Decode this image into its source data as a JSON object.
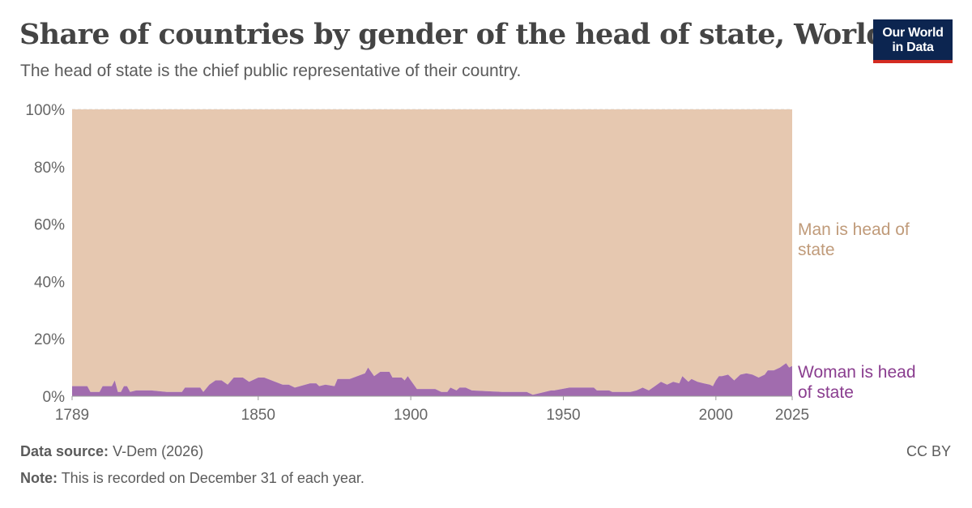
{
  "header": {
    "title": "Share of countries by gender of the head of state, World",
    "subtitle": "The head of state is the chief public representative of their country."
  },
  "logo": {
    "line1": "Our World",
    "line2": "in Data"
  },
  "footer": {
    "source_label": "Data source:",
    "source_value": "V-Dem (2026)",
    "note_label": "Note:",
    "note_value": "This is recorded on December 31 of each year.",
    "license": "CC BY"
  },
  "colors": {
    "man": "#e6c8b0",
    "man_label": "#c09b7a",
    "woman": "#a16cae",
    "woman_label": "#8a3d8f"
  },
  "chart_data": {
    "type": "area",
    "stacked": true,
    "x_ticks": [
      1789,
      1850,
      1900,
      1950,
      2000,
      2025
    ],
    "y_ticks": [
      "0%",
      "20%",
      "40%",
      "60%",
      "80%",
      "100%"
    ],
    "ylim": [
      0,
      100
    ],
    "xlim": [
      1789,
      2025
    ],
    "grid": "horizontal dashed",
    "series": [
      {
        "name": "Woman is head of state",
        "x": [
          1789,
          1794,
          1795,
          1798,
          1799,
          1802,
          1803,
          1804,
          1805,
          1806,
          1807,
          1808,
          1810,
          1815,
          1820,
          1825,
          1826,
          1831,
          1832,
          1834,
          1836,
          1838,
          1840,
          1842,
          1845,
          1847,
          1850,
          1852,
          1858,
          1860,
          1862,
          1867,
          1869,
          1870,
          1872,
          1875,
          1876,
          1880,
          1885,
          1886,
          1888,
          1890,
          1893,
          1894,
          1897,
          1898,
          1899,
          1900,
          1902,
          1908,
          1910,
          1912,
          1913,
          1915,
          1916,
          1918,
          1920,
          1930,
          1938,
          1940,
          1942,
          1946,
          1947,
          1952,
          1960,
          1961,
          1965,
          1966,
          1972,
          1974,
          1976,
          1978,
          1980,
          1982,
          1984,
          1986,
          1988,
          1989,
          1991,
          1992,
          1994,
          1996,
          1998,
          1999,
          2000,
          2001,
          2002,
          2004,
          2006,
          2008,
          2010,
          2012,
          2014,
          2016,
          2017,
          2019,
          2021,
          2023,
          2024,
          2025
        ],
        "values": [
          3.5,
          3.5,
          1.5,
          1.5,
          3.5,
          3.5,
          5.5,
          1.5,
          1.5,
          3.5,
          3.5,
          1.5,
          2,
          2,
          1.5,
          1.5,
          3,
          3,
          1.5,
          4,
          5.5,
          5.5,
          4,
          6.5,
          6.5,
          5,
          6.5,
          6.5,
          4,
          4,
          3,
          4.5,
          4.5,
          3.5,
          4,
          3.5,
          6,
          6,
          8,
          10,
          7,
          8.5,
          8.5,
          6.5,
          6.5,
          5.5,
          7,
          5.5,
          2.5,
          2.5,
          1.5,
          1.5,
          3,
          2,
          3,
          3,
          2,
          1.5,
          1.5,
          0.5,
          1,
          2,
          2,
          3,
          3,
          2,
          2,
          1.5,
          1.5,
          2,
          3,
          2,
          3.5,
          5,
          4,
          5,
          4.5,
          7,
          5,
          6,
          5,
          4.5,
          4,
          3.5,
          5.5,
          7,
          7,
          7.5,
          5.5,
          7.5,
          8,
          7.5,
          6.5,
          7.5,
          9,
          9,
          10,
          11.5,
          10,
          10.5
        ]
      },
      {
        "name": "Man is head of state",
        "values_note": "Complement of woman share",
        "total": 100
      }
    ],
    "labels": {
      "man": [
        "Man is head of",
        "state"
      ],
      "woman": [
        "Woman is head",
        "of state"
      ]
    }
  }
}
